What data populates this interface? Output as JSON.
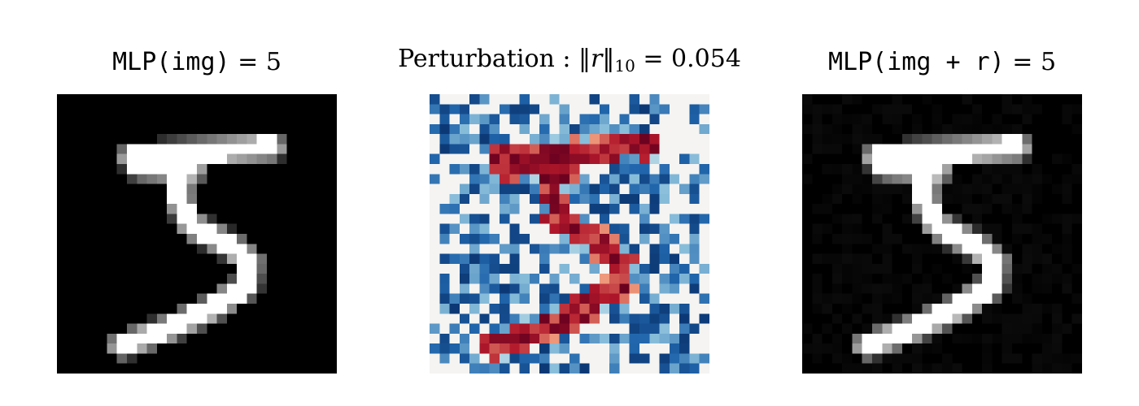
{
  "panels": {
    "original": {
      "title_code": "MLP(img)",
      "title_op": " = ",
      "title_value": "5",
      "label": "original digit image"
    },
    "perturbation": {
      "title_word": "Perturbation : ",
      "title_norm_open": "‖",
      "title_norm_var": "r",
      "title_norm_close": "‖",
      "title_norm_sub": "10",
      "title_op": " = ",
      "title_value": "0.054"
    },
    "perturbed": {
      "title_code": "MLP(img + r)",
      "title_op": " = ",
      "title_value": "5"
    }
  },
  "colors": {
    "background": "#ffffff",
    "digit_on": "#ffffff",
    "digit_off": "#000000",
    "perturb_neg_strong": "#08306b",
    "perturb_neg": "#2166ac",
    "perturb_neg_light": "#92c5de",
    "perturb_zero": "#f5f4f2",
    "perturb_pos_light": "#f4a582",
    "perturb_pos": "#b2182b",
    "perturb_pos_strong": "#67001f"
  },
  "grid": {
    "rows": 28,
    "cols": 28
  }
}
